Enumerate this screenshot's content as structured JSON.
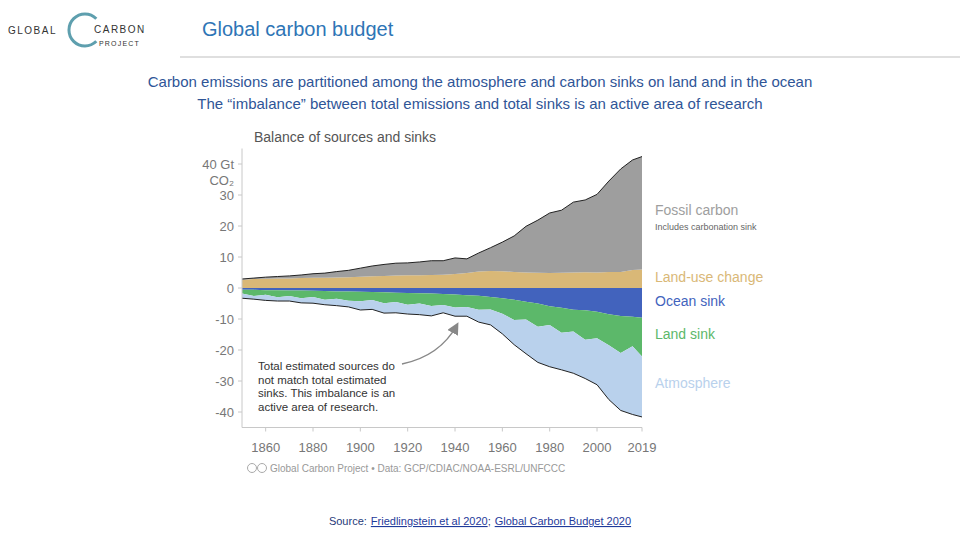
{
  "page": {
    "logo": [
      "GLOBAL",
      "CARBON",
      "PROJECT"
    ],
    "title": "Global carbon budget",
    "subtitle": [
      "Carbon emissions are partitioned among the atmosphere and carbon sinks on land and in the ocean",
      "The “imbalance” between total emissions and total sinks is an active area of research"
    ],
    "source_label": "Source:",
    "source_links": [
      "Friedlingstein et al 2020",
      "Global Carbon Budget 2020"
    ],
    "source_separator": ";"
  },
  "chart_data": {
    "type": "area",
    "stacked": true,
    "grid": false,
    "title": "Balance of sources and sinks",
    "y_label": "CO₂",
    "credit": "Global Carbon Project • Data: GCP/CDIAC/NOAA-ESRL/UNFCCC",
    "x": [
      1850,
      1855,
      1860,
      1865,
      1870,
      1875,
      1880,
      1885,
      1890,
      1895,
      1900,
      1905,
      1910,
      1915,
      1920,
      1925,
      1930,
      1935,
      1940,
      1945,
      1950,
      1955,
      1960,
      1965,
      1970,
      1975,
      1980,
      1985,
      1990,
      1995,
      2000,
      2005,
      2010,
      2015,
      2019
    ],
    "xlim": [
      1850,
      2019
    ],
    "xticks": [
      1860,
      1880,
      1900,
      1920,
      1940,
      1960,
      1980,
      2000,
      2019
    ],
    "ylim": [
      -45,
      45
    ],
    "yticks": [
      -40,
      -30,
      -20,
      -10,
      0,
      10,
      20,
      30,
      {
        "value": 40,
        "label": "40 Gt"
      }
    ],
    "series": [
      {
        "name": "Fossil carbon",
        "color": "#9e9e9e",
        "values": [
          0.2,
          0.3,
          0.5,
          0.6,
          0.8,
          1.0,
          1.3,
          1.5,
          1.9,
          2.2,
          2.8,
          3.3,
          3.7,
          4.0,
          4.0,
          4.3,
          4.6,
          4.5,
          5.2,
          4.6,
          6.0,
          7.5,
          9.4,
          11.6,
          14.9,
          17.0,
          19.4,
          20.2,
          22.7,
          23.3,
          25.2,
          29.3,
          33.2,
          35.5,
          36.4
        ]
      },
      {
        "name": "Land-use change",
        "color": "#d9b877",
        "values": [
          2.7,
          2.9,
          3.0,
          3.1,
          3.1,
          3.2,
          3.3,
          3.3,
          3.4,
          3.5,
          3.6,
          3.8,
          3.9,
          4.0,
          4.1,
          4.1,
          4.2,
          4.3,
          4.5,
          4.8,
          5.3,
          5.5,
          5.4,
          5.2,
          5.0,
          4.9,
          4.8,
          4.9,
          5.0,
          5.1,
          5.0,
          5.2,
          5.2,
          5.8,
          6.0
        ]
      },
      {
        "name": "Ocean sink",
        "color": "#4263bd",
        "values": [
          -0.6,
          -0.6,
          -0.7,
          -0.7,
          -0.8,
          -0.8,
          -0.9,
          -1.0,
          -1.1,
          -1.1,
          -1.2,
          -1.3,
          -1.4,
          -1.5,
          -1.6,
          -1.7,
          -1.8,
          -1.9,
          -2.1,
          -2.3,
          -2.5,
          -2.9,
          -3.3,
          -3.8,
          -4.4,
          -5.0,
          -5.9,
          -6.4,
          -7.0,
          -7.2,
          -7.7,
          -8.5,
          -9.0,
          -9.3,
          -9.6
        ]
      },
      {
        "name": "Land sink",
        "color": "#5cb86a",
        "values": [
          -1.2,
          -2.0,
          -1.5,
          -2.3,
          -1.8,
          -2.5,
          -2.0,
          -2.8,
          -2.4,
          -3.0,
          -3.1,
          -2.6,
          -3.5,
          -3.0,
          -3.8,
          -3.3,
          -4.0,
          -3.6,
          -4.2,
          -3.8,
          -4.5,
          -4.0,
          -5.0,
          -6.5,
          -5.8,
          -7.5,
          -6.0,
          -8.0,
          -7.0,
          -9.5,
          -8.5,
          -10.0,
          -12.0,
          -9.5,
          -12.5
        ]
      },
      {
        "name": "Atmosphere",
        "color": "#b9d1ec",
        "values": [
          -1.5,
          -1.0,
          -1.8,
          -1.2,
          -1.6,
          -1.5,
          -2.0,
          -1.6,
          -2.2,
          -2.0,
          -2.8,
          -3.0,
          -3.2,
          -3.5,
          -3.0,
          -3.6,
          -3.2,
          -2.5,
          -2.8,
          -3.0,
          -4.0,
          -5.0,
          -6.5,
          -8.0,
          -11.0,
          -11.5,
          -13.5,
          -12.0,
          -13.5,
          -12.5,
          -15.0,
          -17.5,
          -18.5,
          -22.0,
          -19.5
        ]
      }
    ],
    "annotations": [
      {
        "text": "Includes carbonation sink"
      },
      {
        "text": "Total estimated sources do\nnot match total estimated\nsinks. This imbalance is an\nactive area of research."
      }
    ]
  }
}
